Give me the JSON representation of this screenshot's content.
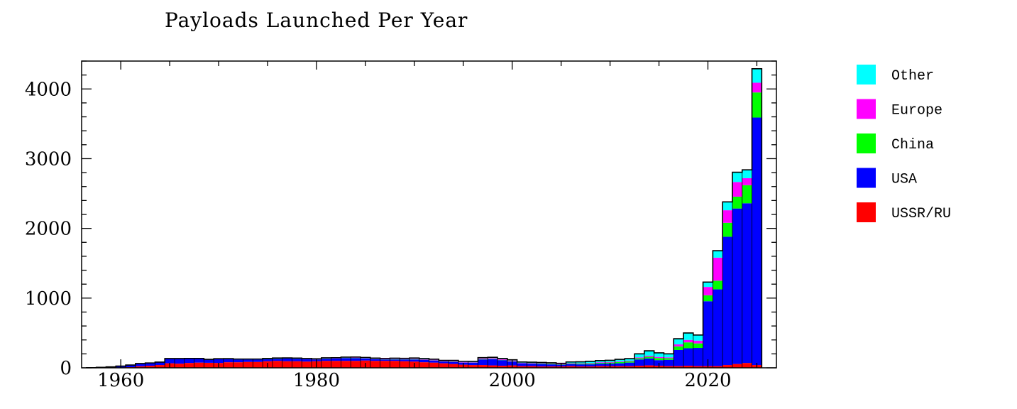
{
  "chart_data": {
    "type": "bar",
    "stacked": true,
    "title": "Payloads Launched Per Year",
    "xlabel": "",
    "ylabel": "",
    "xlim": [
      1956,
      2027
    ],
    "ylim": [
      0,
      4400
    ],
    "x_ticks": [
      1960,
      1980,
      2000,
      2020
    ],
    "x_tick_labels": [
      "1960",
      "1980",
      "2000",
      "2020"
    ],
    "y_ticks": [
      0,
      1000,
      2000,
      3000,
      4000
    ],
    "y_tick_labels": [
      "0",
      "1000",
      "2000",
      "3000",
      "4000"
    ],
    "grid": false,
    "legend": {
      "placement": "right",
      "entries": [
        "Other",
        "Europe",
        "China",
        "USA",
        "USSR/RU"
      ]
    },
    "colors": {
      "Other": "#00ffff",
      "Europe": "#ff00ff",
      "China": "#00ff00",
      "USA": "#0000ff",
      "USSR/RU": "#ff0000"
    },
    "x": [
      1957,
      1958,
      1959,
      1960,
      1961,
      1962,
      1963,
      1964,
      1965,
      1966,
      1967,
      1968,
      1969,
      1970,
      1971,
      1972,
      1973,
      1974,
      1975,
      1976,
      1977,
      1978,
      1979,
      1980,
      1981,
      1982,
      1983,
      1984,
      1985,
      1986,
      1987,
      1988,
      1989,
      1990,
      1991,
      1992,
      1993,
      1994,
      1995,
      1996,
      1997,
      1998,
      1999,
      2000,
      2001,
      2002,
      2003,
      2004,
      2005,
      2006,
      2007,
      2008,
      2009,
      2010,
      2011,
      2012,
      2013,
      2014,
      2015,
      2016,
      2017,
      2018,
      2019,
      2020,
      2021,
      2022,
      2023,
      2024,
      2025
    ],
    "series": [
      {
        "name": "USSR/RU",
        "values": [
          2,
          1,
          3,
          5,
          10,
          22,
          30,
          40,
          65,
          60,
          70,
          75,
          72,
          70,
          80,
          80,
          85,
          85,
          95,
          100,
          95,
          95,
          90,
          95,
          100,
          100,
          100,
          100,
          105,
          100,
          100,
          100,
          95,
          90,
          80,
          75,
          65,
          55,
          45,
          40,
          40,
          35,
          30,
          35,
          25,
          25,
          20,
          20,
          20,
          25,
          20,
          20,
          25,
          25,
          25,
          25,
          30,
          35,
          30,
          25,
          25,
          30,
          25,
          25,
          25,
          40,
          55,
          70,
          40
        ]
      },
      {
        "name": "USA",
        "values": [
          0,
          6,
          10,
          20,
          30,
          40,
          40,
          40,
          65,
          70,
          60,
          55,
          45,
          55,
          45,
          40,
          35,
          35,
          30,
          30,
          40,
          35,
          35,
          25,
          30,
          35,
          40,
          40,
          30,
          25,
          20,
          20,
          25,
          30,
          35,
          30,
          25,
          30,
          30,
          35,
          80,
          90,
          80,
          55,
          40,
          35,
          35,
          30,
          25,
          30,
          30,
          30,
          35,
          35,
          40,
          50,
          90,
          100,
          80,
          90,
          230,
          250,
          260,
          930,
          1100,
          1840,
          2230,
          2290,
          3550
        ]
      },
      {
        "name": "China",
        "values": [
          0,
          0,
          0,
          0,
          0,
          0,
          0,
          0,
          0,
          0,
          0,
          0,
          0,
          1,
          1,
          0,
          0,
          0,
          3,
          3,
          1,
          1,
          1,
          1,
          2,
          1,
          2,
          3,
          2,
          2,
          3,
          4,
          2,
          5,
          2,
          3,
          2,
          5,
          2,
          3,
          6,
          6,
          4,
          5,
          2,
          5,
          6,
          8,
          5,
          8,
          10,
          11,
          11,
          15,
          19,
          19,
          18,
          24,
          30,
          23,
          52,
          85,
          65,
          85,
          125,
          200,
          170,
          260,
          360
        ]
      },
      {
        "name": "Europe",
        "values": [
          0,
          0,
          0,
          0,
          0,
          0,
          0,
          0,
          0,
          0,
          0,
          0,
          0,
          0,
          0,
          0,
          0,
          0,
          0,
          0,
          0,
          0,
          1,
          2,
          3,
          3,
          3,
          4,
          4,
          4,
          4,
          4,
          4,
          6,
          6,
          8,
          6,
          8,
          8,
          6,
          10,
          10,
          10,
          10,
          6,
          6,
          6,
          6,
          6,
          6,
          6,
          8,
          8,
          8,
          8,
          8,
          12,
          15,
          15,
          12,
          30,
          35,
          40,
          120,
          330,
          180,
          210,
          100,
          140
        ]
      },
      {
        "name": "Other",
        "values": [
          0,
          0,
          0,
          0,
          0,
          0,
          0,
          2,
          3,
          3,
          5,
          5,
          5,
          5,
          6,
          6,
          6,
          6,
          6,
          8,
          6,
          8,
          8,
          6,
          8,
          6,
          8,
          8,
          8,
          8,
          8,
          10,
          10,
          10,
          10,
          8,
          8,
          8,
          8,
          8,
          10,
          10,
          10,
          10,
          10,
          10,
          10,
          8,
          8,
          15,
          20,
          25,
          25,
          25,
          30,
          30,
          50,
          70,
          60,
          50,
          80,
          100,
          80,
          70,
          100,
          120,
          140,
          120,
          200
        ]
      }
    ]
  }
}
